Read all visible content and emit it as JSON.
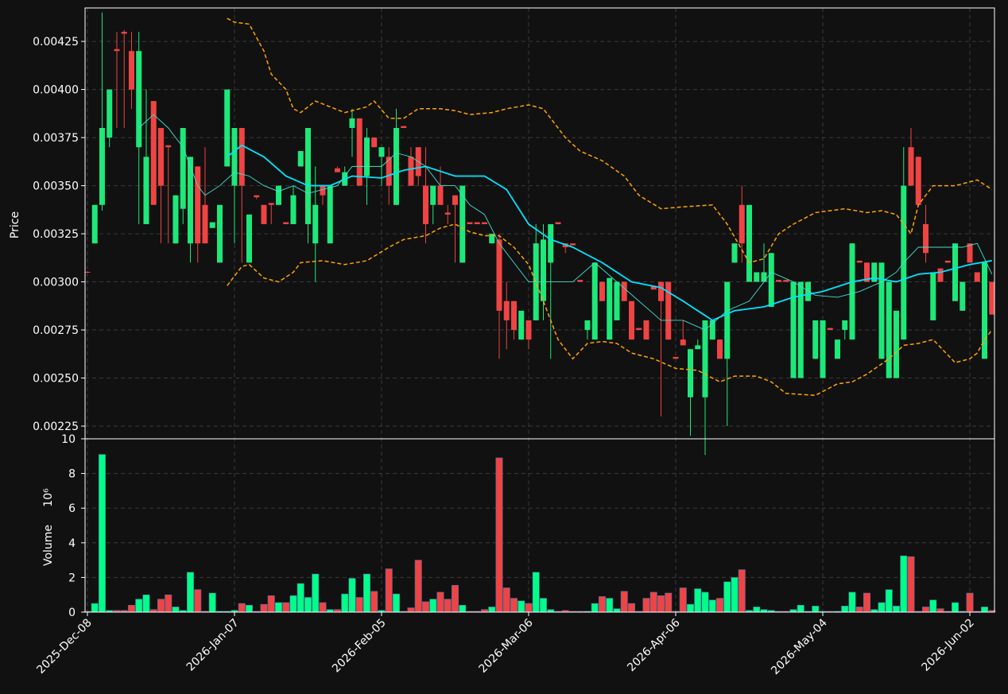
{
  "chart_data": {
    "type": "candlestick",
    "ylabel": "Price",
    "ylim": [
      0.002184,
      0.004424
    ],
    "yticks": [
      0.00225,
      {
        "value": 0.0025,
        "label": "0.00250"
      },
      0.00275,
      {
        "value": 0.003,
        "label": "0.00300"
      },
      0.00325,
      {
        "value": 0.0035,
        "label": "0.00350"
      },
      0.00375,
      {
        "value": 0.004,
        "label": "0.00400"
      },
      0.00425
    ],
    "xlim": [
      -0.32,
      123.35
    ],
    "xticks": [
      {
        "value": 0,
        "label": "2025-Dec-08"
      },
      {
        "value": 20,
        "label": "2026-Jan-07"
      },
      {
        "value": 40,
        "label": "2026-Feb-05"
      },
      {
        "value": 60,
        "label": "2026-Mar-06"
      },
      {
        "value": 80,
        "label": "2026-Apr-06"
      },
      {
        "value": 100,
        "label": "2026-May-04"
      },
      {
        "value": 120,
        "label": "2026-Jun-02"
      }
    ],
    "grid": true,
    "up_color": "#1ee87a",
    "down_color": "#ef4444",
    "open": [
      0.003052,
      0.0032,
      0.0034,
      0.00375,
      0.00421,
      0.0043,
      0.0042,
      0.0037,
      0.0033,
      0.00394,
      0.0038,
      0.00371,
      0.0032,
      0.00338,
      0.0032,
      0.0036,
      0.0034,
      0.00328,
      0.0031,
      0.0036,
      0.0035,
      0.0038,
      0.0031,
      0.00345,
      0.0034,
      0.00341,
      0.0034,
      0.00331,
      0.0033,
      0.0036,
      0.0033,
      0.0032,
      0.0035,
      0.0032,
      0.00359,
      0.0035,
      0.0038,
      0.00385,
      0.00355,
      0.00375,
      0.00365,
      0.00365,
      0.0034,
      0.00381,
      0.00365,
      0.0037,
      0.0035,
      0.0034,
      0.0035,
      0.00336,
      0.00345,
      0.0031,
      0.00331,
      0.00331,
      0.00331,
      0.0032,
      0.00322,
      0.0029,
      0.0029,
      0.0027,
      0.0028,
      0.0028,
      0.0029,
      0.0031,
      0.00331,
      0.0032,
      0.0032,
      0.00301,
      0.00275,
      0.0027,
      0.003,
      0.0027,
      0.0028,
      0.003,
      0.0029,
      0.00276,
      0.0028,
      0.00298,
      0.003,
      0.003,
      0.00261,
      0.0027,
      0.0024,
      0.00265,
      0.0024,
      0.0027,
      0.0027,
      0.0026,
      0.0031,
      0.0034,
      0.003,
      0.003,
      0.003,
      0.00287,
      0.00301,
      0.00301,
      0.0025,
      0.0025,
      0.0029,
      0.0026,
      0.0025,
      0.00276,
      0.0026,
      0.00275,
      0.0027,
      0.00311,
      0.0031,
      0.003,
      0.0026,
      0.0025,
      0.0025,
      0.0027,
      0.0037,
      0.00365,
      0.0033,
      0.0028,
      0.00307,
      0.00311,
      0.0029,
      0.00285,
      0.0032,
      0.00305,
      0.0026,
      0.003
    ],
    "high": [
      0.003055,
      0.0034,
      0.0044,
      0.004,
      0.0043,
      0.00431,
      0.0043,
      0.0043,
      0.004,
      0.00394,
      0.0038,
      0.00371,
      0.00345,
      0.0038,
      0.00365,
      0.0036,
      0.0037,
      0.00331,
      0.0034,
      0.004,
      0.0038,
      0.0038,
      0.00335,
      0.00345,
      0.0034,
      0.00341,
      0.0035,
      0.00331,
      0.0035,
      0.00368,
      0.0038,
      0.0036,
      0.0035,
      0.0035,
      0.0036,
      0.0036,
      0.0039,
      0.00385,
      0.0038,
      0.00375,
      0.0037,
      0.0037,
      0.0039,
      0.00381,
      0.0037,
      0.0037,
      0.0037,
      0.0035,
      0.0036,
      0.0034,
      0.00345,
      0.0035,
      0.00331,
      0.00331,
      0.00331,
      0.00325,
      0.00325,
      0.003,
      0.0029,
      0.00285,
      0.0028,
      0.0033,
      0.0033,
      0.0033,
      0.00331,
      0.0032,
      0.0032,
      0.00301,
      0.0028,
      0.0031,
      0.003,
      0.00302,
      0.003,
      0.003,
      0.0029,
      0.00276,
      0.0028,
      0.00298,
      0.003,
      0.003,
      0.00261,
      0.0028,
      0.00265,
      0.0027,
      0.0028,
      0.0028,
      0.0027,
      0.003,
      0.0032,
      0.0035,
      0.0034,
      0.00305,
      0.0032,
      0.00315,
      0.00301,
      0.00301,
      0.003,
      0.003,
      0.003,
      0.0028,
      0.0028,
      0.00276,
      0.0027,
      0.0028,
      0.0032,
      0.00311,
      0.0031,
      0.0031,
      0.0031,
      0.003,
      0.00285,
      0.0037,
      0.0038,
      0.00365,
      0.0034,
      0.00305,
      0.00307,
      0.00311,
      0.0032,
      0.003,
      0.0032,
      0.00305,
      0.0031,
      0.003
    ],
    "low": [
      0.00305,
      0.0032,
      0.00337,
      0.0037,
      0.0038,
      0.0038,
      0.0039,
      0.0033,
      0.0033,
      0.0034,
      0.0032,
      0.0032,
      0.0032,
      0.0033,
      0.0031,
      0.0031,
      0.0032,
      0.00328,
      0.0031,
      0.0036,
      0.0032,
      0.0031,
      0.0031,
      0.00343,
      0.0033,
      0.0033,
      0.0034,
      0.0033,
      0.0033,
      0.0036,
      0.0032,
      0.003,
      0.0034,
      0.0032,
      0.00357,
      0.0035,
      0.00365,
      0.0035,
      0.0034,
      0.0037,
      0.0035,
      0.0034,
      0.0034,
      0.0038,
      0.0035,
      0.0035,
      0.0032,
      0.0033,
      0.0034,
      0.0033,
      0.0031,
      0.0031,
      0.0033,
      0.0033,
      0.0033,
      0.0032,
      0.0026,
      0.00265,
      0.0027,
      0.0027,
      0.00265,
      0.0028,
      0.0028,
      0.0026,
      0.0033,
      0.00315,
      0.00319,
      0.003,
      0.0027,
      0.0027,
      0.0029,
      0.0027,
      0.0028,
      0.0029,
      0.0027,
      0.00275,
      0.0027,
      0.00296,
      0.0023,
      0.0027,
      0.0026,
      0.00267,
      0.0022,
      0.00265,
      0.0021,
      0.0027,
      0.0026,
      0.00225,
      0.0031,
      0.0031,
      0.003,
      0.003,
      0.003,
      0.00287,
      0.003,
      0.003,
      0.0025,
      0.0025,
      0.0029,
      0.0026,
      0.0025,
      0.00275,
      0.0026,
      0.0027,
      0.0027,
      0.0031,
      0.003,
      0.003,
      0.0026,
      0.0025,
      0.0025,
      0.0027,
      0.0035,
      0.0034,
      0.0031,
      0.0028,
      0.003,
      0.0031,
      0.0029,
      0.00285,
      0.0031,
      0.003,
      0.0026,
      0.00283
    ],
    "close": [
      0.00305,
      0.0034,
      0.0038,
      0.004,
      0.0042,
      0.00429,
      0.004,
      0.0042,
      0.00365,
      0.0034,
      0.0035,
      0.0037,
      0.00345,
      0.0038,
      0.00365,
      0.0032,
      0.0032,
      0.00331,
      0.0034,
      0.004,
      0.0038,
      0.0035,
      0.00335,
      0.00344,
      0.0033,
      0.0034,
      0.0035,
      0.0033,
      0.00345,
      0.00368,
      0.0038,
      0.0034,
      0.00345,
      0.0035,
      0.00357,
      0.00357,
      0.00385,
      0.0035,
      0.00375,
      0.0037,
      0.0037,
      0.0035,
      0.0038,
      0.0038,
      0.0035,
      0.00355,
      0.0033,
      0.0035,
      0.0034,
      0.00335,
      0.0034,
      0.0035,
      0.0033,
      0.0033,
      0.0033,
      0.00325,
      0.00285,
      0.0028,
      0.00275,
      0.00285,
      0.0027,
      0.0032,
      0.00322,
      0.0033,
      0.0033,
      0.00318,
      0.00319,
      0.003,
      0.0028,
      0.0031,
      0.0029,
      0.00302,
      0.003,
      0.0029,
      0.0027,
      0.00275,
      0.0027,
      0.00296,
      0.0029,
      0.0027,
      0.0026,
      0.00267,
      0.00265,
      0.00267,
      0.0028,
      0.0028,
      0.0026,
      0.003,
      0.0032,
      0.0032,
      0.0034,
      0.00305,
      0.00305,
      0.00315,
      0.003,
      0.003,
      0.003,
      0.003,
      0.003,
      0.0028,
      0.0028,
      0.00275,
      0.0027,
      0.0028,
      0.0032,
      0.0031,
      0.003,
      0.0031,
      0.0031,
      0.003,
      0.00285,
      0.0035,
      0.0035,
      0.0034,
      0.00315,
      0.00305,
      0.003,
      0.0031,
      0.0032,
      0.003,
      0.0031,
      0.003,
      0.0031,
      0.00283
    ],
    "lines": [
      {
        "color": "#00e5ff",
        "style": "thick",
        "x": [
          19,
          21,
          24,
          27,
          30,
          33,
          36,
          40,
          43,
          46,
          50,
          54,
          57,
          60,
          63,
          66,
          70,
          74,
          78,
          81,
          85,
          88,
          92,
          96,
          100,
          104,
          107,
          110,
          113,
          116,
          120,
          123
        ],
        "values": [
          0.00365,
          0.00371,
          0.00365,
          0.00355,
          0.0035,
          0.0035,
          0.00355,
          0.00354,
          0.00358,
          0.0036,
          0.00355,
          0.00355,
          0.00348,
          0.0033,
          0.00322,
          0.00318,
          0.0031,
          0.003,
          0.00297,
          0.0029,
          0.0028,
          0.00285,
          0.00287,
          0.00292,
          0.00295,
          0.003,
          0.00302,
          0.003,
          0.00304,
          0.00305,
          0.00309,
          0.00311
        ]
      },
      {
        "color": "#40e0d0",
        "style": "thin",
        "x": [
          7,
          9,
          11,
          13,
          15,
          16,
          18,
          20,
          22,
          24,
          26,
          28,
          30,
          32,
          34,
          36,
          38,
          40,
          42,
          44,
          46,
          48,
          50,
          52,
          54,
          56,
          58,
          60,
          63,
          66,
          69,
          72,
          75,
          78,
          81,
          84,
          87,
          90,
          93,
          96,
          99,
          102,
          105,
          108,
          110,
          111,
          113,
          116,
          119,
          121,
          123
        ],
        "values": [
          0.0038,
          0.00387,
          0.0038,
          0.0037,
          0.0035,
          0.00345,
          0.0035,
          0.00357,
          0.00355,
          0.0035,
          0.00347,
          0.0035,
          0.00346,
          0.00348,
          0.0035,
          0.0036,
          0.0036,
          0.0036,
          0.00367,
          0.00365,
          0.0036,
          0.0035,
          0.0035,
          0.0034,
          0.00335,
          0.0032,
          0.0031,
          0.003,
          0.003,
          0.003,
          0.0031,
          0.003,
          0.0029,
          0.0028,
          0.0028,
          0.00275,
          0.00285,
          0.0029,
          0.00305,
          0.003,
          0.00293,
          0.00292,
          0.00295,
          0.003,
          0.00305,
          0.0031,
          0.00318,
          0.00318,
          0.00318,
          0.0032,
          0.00304
        ]
      },
      {
        "color": "#ffa500",
        "style": "dashed",
        "x": [
          19,
          20,
          22,
          24,
          25,
          27,
          28,
          29,
          31,
          33,
          35,
          38,
          39,
          41,
          43,
          45,
          48,
          50,
          52,
          55,
          57,
          60,
          62,
          65,
          67,
          70,
          73,
          75,
          78,
          81,
          85,
          87,
          90,
          92,
          94,
          96,
          99,
          103,
          106,
          108,
          110,
          112,
          113,
          115,
          118,
          121,
          123
        ],
        "values": [
          0.00437,
          0.00435,
          0.00434,
          0.0042,
          0.00408,
          0.004,
          0.0039,
          0.00388,
          0.00394,
          0.00391,
          0.00388,
          0.00391,
          0.00394,
          0.00385,
          0.00385,
          0.0039,
          0.0039,
          0.00389,
          0.00387,
          0.00388,
          0.0039,
          0.00392,
          0.0039,
          0.00375,
          0.00368,
          0.00363,
          0.00355,
          0.00345,
          0.00338,
          0.00339,
          0.0034,
          0.0033,
          0.0031,
          0.00312,
          0.00325,
          0.0033,
          0.00336,
          0.00338,
          0.00336,
          0.00337,
          0.00335,
          0.00325,
          0.0034,
          0.0035,
          0.0035,
          0.00353,
          0.00348
        ]
      },
      {
        "color": "#ffa500",
        "style": "dashed",
        "x": [
          19,
          21,
          22,
          24,
          26,
          28,
          29,
          32,
          35,
          38,
          41,
          43,
          46,
          48,
          50,
          52,
          54,
          56,
          58,
          60,
          62,
          64,
          66,
          68,
          70,
          72,
          74,
          77,
          80,
          83,
          86,
          88,
          91,
          93,
          95,
          99,
          102,
          104,
          106,
          109,
          111,
          113,
          115,
          118,
          120,
          121,
          122,
          123
        ],
        "values": [
          0.00298,
          0.00308,
          0.00309,
          0.00302,
          0.003,
          0.00305,
          0.0031,
          0.00311,
          0.00309,
          0.00311,
          0.00318,
          0.00322,
          0.00324,
          0.00328,
          0.0033,
          0.00326,
          0.00324,
          0.00324,
          0.00318,
          0.00309,
          0.0029,
          0.0027,
          0.0026,
          0.00268,
          0.00269,
          0.00268,
          0.00263,
          0.0026,
          0.00255,
          0.00254,
          0.00248,
          0.00251,
          0.00251,
          0.00248,
          0.00242,
          0.00241,
          0.00247,
          0.00248,
          0.00252,
          0.0026,
          0.00267,
          0.00268,
          0.0027,
          0.00258,
          0.0026,
          0.00263,
          0.0027,
          0.00275
        ]
      }
    ],
    "volume": {
      "ylabel": "Volume",
      "offset_label": "10⁶",
      "ylim": [
        0,
        10
      ],
      "yticks": [
        0,
        2,
        4,
        6,
        8,
        10
      ],
      "up_color": "#00ff88",
      "down_color": "#ef4444",
      "values": [
        0.05,
        0.5,
        9.1,
        0.1,
        0.1,
        0.1,
        0.4,
        0.75,
        1.0,
        0.15,
        0.75,
        1.0,
        0.3,
        0.1,
        2.3,
        1.3,
        0.05,
        1.1,
        0.05,
        0.05,
        0.1,
        0.5,
        0.4,
        0.05,
        0.45,
        0.95,
        0.55,
        0.55,
        0.95,
        1.65,
        0.85,
        2.2,
        0.55,
        0.15,
        0.15,
        1.05,
        1.95,
        0.85,
        2.2,
        1.2,
        0.1,
        2.5,
        1.05,
        0.05,
        0.25,
        3.0,
        0.6,
        0.75,
        1.15,
        0.75,
        1.55,
        0.4,
        0.05,
        0.05,
        0.15,
        0.3,
        8.9,
        1.4,
        0.8,
        0.65,
        0.5,
        2.3,
        0.8,
        0.15,
        0.05,
        0.1,
        0.05,
        0.05,
        0.05,
        0.5,
        0.9,
        0.8,
        0.2,
        1.2,
        0.5,
        0.05,
        0.8,
        1.15,
        0.95,
        1.1,
        0.05,
        1.4,
        0.45,
        1.35,
        1.15,
        0.7,
        0.8,
        1.75,
        2.0,
        2.45,
        0.1,
        0.3,
        0.15,
        0.1,
        0.05,
        0.05,
        0.15,
        0.4,
        0.05,
        0.35,
        0.05,
        0.05,
        0.05,
        0.35,
        1.15,
        0.3,
        1.1,
        0.15,
        0.55,
        1.3,
        0.35,
        3.25,
        3.2,
        0.05,
        0.3,
        0.7,
        0.2,
        0.05,
        0.55,
        0.05,
        1.1,
        0.05,
        0.3,
        0.1
      ]
    }
  }
}
